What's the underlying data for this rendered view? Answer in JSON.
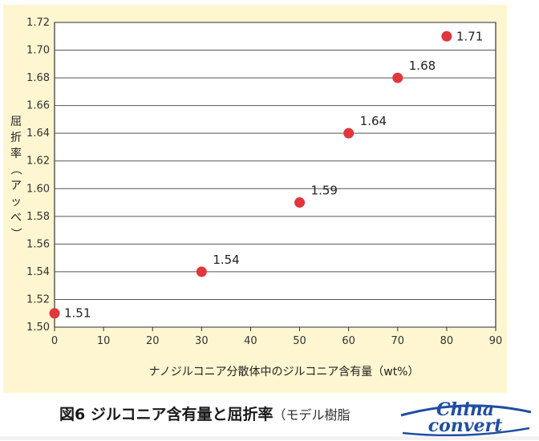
{
  "chart_data": {
    "type": "scatter",
    "x": [
      0,
      30,
      50,
      60,
      70,
      80
    ],
    "y": [
      1.51,
      1.54,
      1.59,
      1.64,
      1.68,
      1.71
    ],
    "data_labels": [
      "1.51",
      "1.54",
      "1.59",
      "1.64",
      "1.68",
      "1.71"
    ],
    "xlabel": "ナノジルコニア分散体中のジルコニア含有量（wt%）",
    "ylabel": "屈折率（アッベ）",
    "xlim": [
      0,
      90
    ],
    "ylim": [
      1.5,
      1.72
    ],
    "x_ticks": [
      "0",
      "10",
      "20",
      "30",
      "40",
      "50",
      "60",
      "70",
      "80",
      "90"
    ],
    "y_ticks": [
      "1.50",
      "1.52",
      "1.54",
      "1.56",
      "1.58",
      "1.60",
      "1.62",
      "1.64",
      "1.66",
      "1.68",
      "1.70",
      "1.72"
    ],
    "grid": "horizontal",
    "marker_color": "#e0363c"
  },
  "caption": {
    "main": "図6 ジルコニア含有量と屈折率",
    "sub": "（モデル樹脂"
  },
  "logo": {
    "text_top": "China",
    "text_bottom": "convert",
    "color": "#1f4ea3"
  }
}
